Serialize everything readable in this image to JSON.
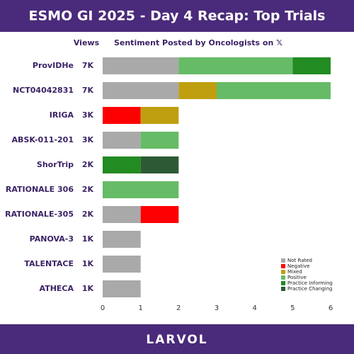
{
  "chart_data": {
    "type": "stacked-barh",
    "title": "ESMO GI 2025 - Day 4 Recap: Top Trials",
    "views_header": "Views",
    "sentiment_header": "Sentiment Posted by Oncologists on 𝕏",
    "footer": "LARVOL",
    "categories": [
      "ProvIDHe",
      "NCT04042831",
      "IRIGA",
      "ABSK-011-201",
      "ShorTrip",
      "RATIONALE 306",
      "RATIONALE-305",
      "PANOVA-3",
      "TALENTACE",
      "ATHECA"
    ],
    "views": [
      "7K",
      "7K",
      "3K",
      "3K",
      "2K",
      "2K",
      "2K",
      "1K",
      "1K",
      "1K"
    ],
    "series": [
      {
        "name": "Not Rated",
        "color": "#a9a9a9",
        "values": [
          2,
          2,
          0,
          1,
          0,
          0,
          1,
          1,
          1,
          1
        ]
      },
      {
        "name": "Negative",
        "color": "#ff0000",
        "values": [
          0,
          0,
          1,
          0,
          0,
          0,
          1,
          0,
          0,
          0
        ]
      },
      {
        "name": "Mixed",
        "color": "#bf9f10",
        "values": [
          0,
          1,
          1,
          0,
          0,
          0,
          0,
          0,
          0,
          0
        ]
      },
      {
        "name": "Positive",
        "color": "#66bb66",
        "values": [
          3,
          3,
          0,
          1,
          0,
          2,
          0,
          0,
          0,
          0
        ]
      },
      {
        "name": "Practice Informing",
        "color": "#228b22",
        "values": [
          1,
          0,
          0,
          0,
          1,
          0,
          0,
          0,
          0,
          0
        ]
      },
      {
        "name": "Practice Changing",
        "color": "#2d5a35",
        "values": [
          0,
          0,
          0,
          0,
          1,
          0,
          0,
          0,
          0,
          0
        ]
      }
    ],
    "xlim": [
      0,
      6
    ],
    "xticks": [
      0,
      1,
      2,
      3,
      4,
      5,
      6
    ],
    "grid": false,
    "legend": "lower right"
  }
}
